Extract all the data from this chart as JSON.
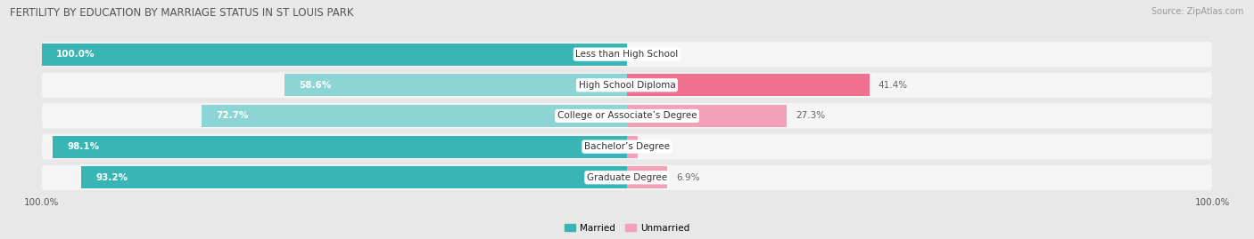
{
  "title": "FERTILITY BY EDUCATION BY MARRIAGE STATUS IN ST LOUIS PARK",
  "source": "Source: ZipAtlas.com",
  "categories": [
    "Less than High School",
    "High School Diploma",
    "College or Associate’s Degree",
    "Bachelor’s Degree",
    "Graduate Degree"
  ],
  "married": [
    100.0,
    58.6,
    72.7,
    98.1,
    93.2
  ],
  "unmarried": [
    0.0,
    41.4,
    27.3,
    1.9,
    6.9
  ],
  "married_color": "#3ab5b5",
  "married_light_color": "#8dd5d5",
  "unmarried_color": "#f07090",
  "unmarried_light_color": "#f4a0b8",
  "background_color": "#e8e8e8",
  "row_bg_color": "#f5f5f5",
  "title_fontsize": 8.5,
  "source_fontsize": 7,
  "label_fontsize": 7.5,
  "tick_fontsize": 7.5,
  "category_fontsize": 7.5,
  "legend_married": "Married",
  "legend_unmarried": "Unmarried"
}
